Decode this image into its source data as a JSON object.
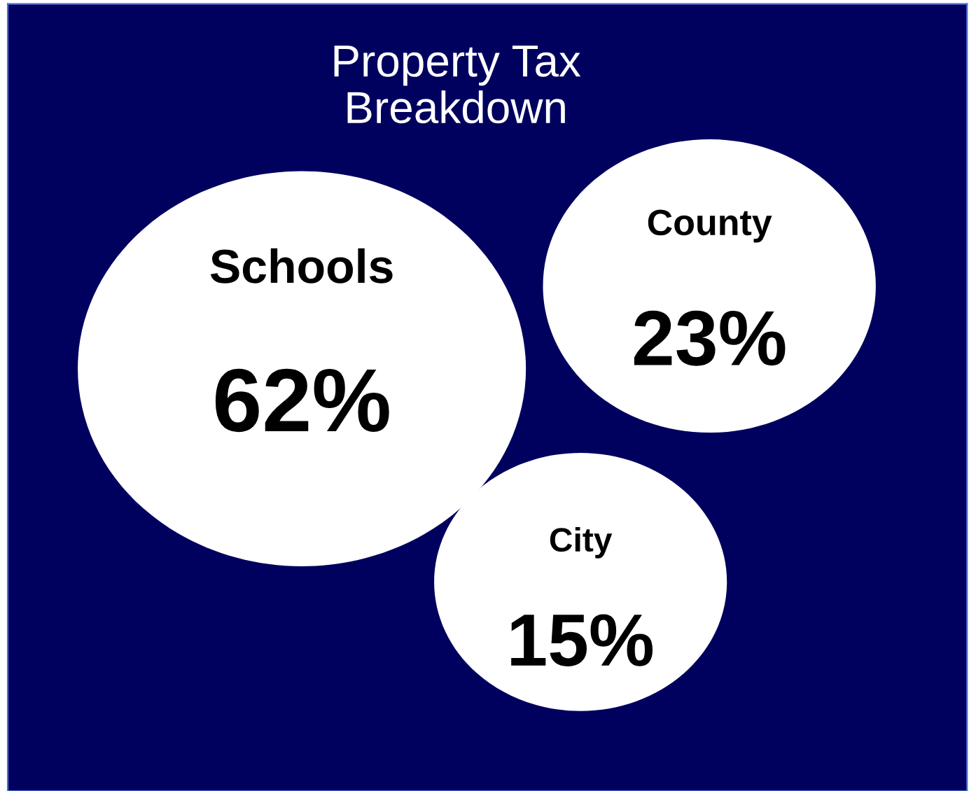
{
  "chart_data": {
    "type": "other",
    "title": "Property Tax\nBreakdown",
    "categories": [
      "Schools",
      "County",
      "City"
    ],
    "values": [
      62,
      23,
      15
    ],
    "value_labels": [
      "62%",
      "23%",
      "15%"
    ],
    "colors": [
      "#ffffff",
      "#ffffff",
      "#ffffff"
    ]
  }
}
